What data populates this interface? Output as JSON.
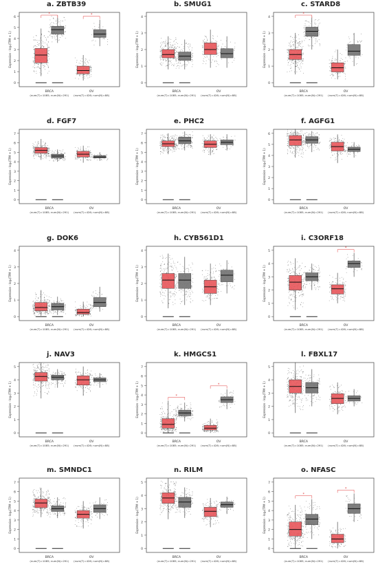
{
  "common": {
    "ylabel": "Expression - log₂(TPM + 1)",
    "groups": [
      {
        "name": "BRCA",
        "sub": "(num(T)=1085; num(N)=291)"
      },
      {
        "name": "OV",
        "sub": "(num(T)=426; num(N)=88)"
      }
    ],
    "colors": {
      "tumor": "#e8555a",
      "normal": "#707070",
      "sig": "#e03a3a",
      "frame": "#555555"
    }
  },
  "chart_data": [
    {
      "type": "box",
      "title": "a.  ZBTB39",
      "ylim": [
        0,
        6
      ],
      "yticks": [
        0,
        1,
        2,
        3,
        4,
        5,
        6
      ],
      "series": [
        {
          "name": "BRCA",
          "tumor": [
            0.6,
            1.8,
            2.5,
            3.1,
            4.9
          ],
          "normal": [
            3.6,
            4.4,
            4.8,
            5.1,
            6.1
          ],
          "sig": true
        },
        {
          "name": "OV",
          "tumor": [
            0.2,
            0.8,
            1.1,
            1.5,
            2.5
          ],
          "normal": [
            3.3,
            4.1,
            4.4,
            4.8,
            5.7
          ],
          "sig": true
        }
      ]
    },
    {
      "type": "box",
      "title": "b.  SMUG1",
      "ylim": [
        0,
        4
      ],
      "yticks": [
        0,
        1,
        2,
        3,
        4
      ],
      "series": [
        {
          "name": "BRCA",
          "tumor": [
            0.8,
            1.5,
            1.7,
            2.0,
            2.8
          ],
          "normal": [
            0.8,
            1.35,
            1.6,
            1.85,
            2.6
          ],
          "sig": false
        },
        {
          "name": "OV",
          "tumor": [
            0.9,
            1.7,
            2.0,
            2.4,
            3.2
          ],
          "normal": [
            0.9,
            1.5,
            1.75,
            2.05,
            2.8
          ],
          "sig": false
        }
      ]
    },
    {
      "type": "box",
      "title": "c.  STARD8",
      "ylim": [
        0,
        4
      ],
      "yticks": [
        0,
        1,
        2,
        3,
        4
      ],
      "series": [
        {
          "name": "BRCA",
          "tumor": [
            0.5,
            1.4,
            1.7,
            2.0,
            3.0
          ],
          "normal": [
            2.0,
            2.8,
            3.1,
            3.35,
            4.0
          ],
          "sig": true
        },
        {
          "name": "OV",
          "tumor": [
            0.2,
            0.65,
            0.9,
            1.2,
            2.0
          ],
          "normal": [
            1.0,
            1.65,
            1.9,
            2.3,
            3.0
          ],
          "sig": false
        }
      ]
    },
    {
      "type": "box",
      "title": "d.  FGF7",
      "ylim": [
        0,
        7
      ],
      "yticks": [
        0,
        1,
        2,
        3,
        4,
        5,
        6,
        7
      ],
      "series": [
        {
          "name": "BRCA",
          "tumor": [
            4.2,
            4.9,
            5.2,
            5.5,
            6.4
          ],
          "normal": [
            4.0,
            4.4,
            4.6,
            4.8,
            5.3
          ],
          "sig": false
        },
        {
          "name": "OV",
          "tumor": [
            3.9,
            4.5,
            4.8,
            5.1,
            5.7
          ],
          "normal": [
            4.1,
            4.4,
            4.5,
            4.65,
            5.0
          ],
          "sig": false
        }
      ]
    },
    {
      "type": "box",
      "title": "e.  PHC2",
      "ylim": [
        0,
        7
      ],
      "yticks": [
        0,
        1,
        2,
        3,
        4,
        5,
        6,
        7
      ],
      "series": [
        {
          "name": "BRCA",
          "tumor": [
            4.8,
            5.6,
            5.9,
            6.2,
            7.0
          ],
          "normal": [
            5.2,
            5.9,
            6.2,
            6.6,
            7.2
          ],
          "sig": false
        },
        {
          "name": "OV",
          "tumor": [
            4.7,
            5.5,
            5.85,
            6.2,
            6.9
          ],
          "normal": [
            5.2,
            5.8,
            6.05,
            6.3,
            6.9
          ],
          "sig": false
        }
      ]
    },
    {
      "type": "box",
      "title": "f.  AGFG1",
      "ylim": [
        0,
        6
      ],
      "yticks": [
        0,
        1,
        2,
        3,
        4,
        5,
        6
      ],
      "series": [
        {
          "name": "BRCA",
          "tumor": [
            3.8,
            4.9,
            5.4,
            5.8,
            6.4
          ],
          "normal": [
            4.3,
            5.1,
            5.4,
            5.7,
            6.2
          ],
          "sig": false
        },
        {
          "name": "OV",
          "tumor": [
            3.3,
            4.4,
            4.8,
            5.2,
            5.9
          ],
          "normal": [
            3.8,
            4.35,
            4.55,
            4.75,
            5.2
          ],
          "sig": false
        }
      ]
    },
    {
      "type": "box",
      "title": "g.  DOK6",
      "ylim": [
        0,
        4
      ],
      "yticks": [
        0,
        1,
        2,
        3,
        4
      ],
      "series": [
        {
          "name": "BRCA",
          "tumor": [
            0.05,
            0.35,
            0.55,
            0.85,
            1.6
          ],
          "normal": [
            0.1,
            0.4,
            0.6,
            0.8,
            1.2
          ],
          "sig": false
        },
        {
          "name": "OV",
          "tumor": [
            0.0,
            0.15,
            0.25,
            0.45,
            0.9
          ],
          "normal": [
            0.3,
            0.6,
            0.85,
            1.15,
            1.8
          ],
          "sig": false
        }
      ]
    },
    {
      "type": "box",
      "title": "h.  CYB561D1",
      "ylim": [
        0,
        4
      ],
      "yticks": [
        0,
        1,
        2,
        3,
        4
      ],
      "series": [
        {
          "name": "BRCA",
          "tumor": [
            0.5,
            1.7,
            2.2,
            2.6,
            3.8
          ],
          "normal": [
            0.7,
            1.7,
            2.2,
            2.6,
            3.6
          ],
          "sig": false
        },
        {
          "name": "OV",
          "tumor": [
            0.7,
            1.4,
            1.8,
            2.2,
            3.2
          ],
          "normal": [
            1.4,
            2.1,
            2.5,
            2.8,
            3.4
          ],
          "sig": false
        }
      ]
    },
    {
      "type": "box",
      "title": "i.  C3ORF18",
      "ylim": [
        0,
        5
      ],
      "yticks": [
        0,
        1,
        2,
        3,
        4,
        5
      ],
      "series": [
        {
          "name": "BRCA",
          "tumor": [
            0.5,
            2.0,
            2.6,
            3.1,
            4.4
          ],
          "normal": [
            2.0,
            2.7,
            3.0,
            3.3,
            4.0
          ],
          "sig": false
        },
        {
          "name": "OV",
          "tumor": [
            1.0,
            1.7,
            2.1,
            2.4,
            3.3
          ],
          "normal": [
            3.0,
            3.7,
            4.0,
            4.2,
            4.8
          ],
          "sig": true
        }
      ]
    },
    {
      "type": "box",
      "title": "j.  NAV3",
      "ylim": [
        0,
        5
      ],
      "yticks": [
        0,
        1,
        2,
        3,
        4,
        5
      ],
      "series": [
        {
          "name": "BRCA",
          "tumor": [
            2.6,
            3.9,
            4.25,
            4.55,
            5.3
          ],
          "normal": [
            3.4,
            4.0,
            4.2,
            4.35,
            4.8
          ],
          "sig": false
        },
        {
          "name": "OV",
          "tumor": [
            2.8,
            3.6,
            4.0,
            4.3,
            5.0
          ],
          "normal": [
            3.4,
            3.85,
            4.0,
            4.15,
            4.5
          ],
          "sig": false
        }
      ]
    },
    {
      "type": "box",
      "title": "k.  HMGCS1",
      "ylim": [
        0,
        7
      ],
      "yticks": [
        0,
        1,
        2,
        3,
        4,
        5,
        6,
        7
      ],
      "series": [
        {
          "name": "BRCA",
          "tumor": [
            0.0,
            0.5,
            0.9,
            1.5,
            3.4
          ],
          "normal": [
            1.2,
            1.8,
            2.1,
            2.4,
            3.2
          ],
          "sig": true
        },
        {
          "name": "OV",
          "tumor": [
            0.0,
            0.3,
            0.5,
            0.8,
            1.5
          ],
          "normal": [
            2.5,
            3.2,
            3.5,
            3.8,
            4.6
          ],
          "sig": true
        }
      ]
    },
    {
      "type": "box",
      "title": "l.  FBXL17",
      "ylim": [
        0,
        5
      ],
      "yticks": [
        0,
        1,
        2,
        3,
        4,
        5
      ],
      "series": [
        {
          "name": "BRCA",
          "tumor": [
            1.5,
            3.0,
            3.5,
            4.0,
            5.3
          ],
          "normal": [
            2.0,
            3.0,
            3.4,
            3.8,
            4.8
          ],
          "sig": false
        },
        {
          "name": "OV",
          "tumor": [
            1.4,
            2.2,
            2.6,
            2.95,
            3.8
          ],
          "normal": [
            2.0,
            2.4,
            2.6,
            2.8,
            3.3
          ],
          "sig": false
        }
      ]
    },
    {
      "type": "box",
      "title": "m.  SMNDC1",
      "ylim": [
        0,
        7
      ],
      "yticks": [
        0,
        1,
        2,
        3,
        4,
        5,
        6,
        7
      ],
      "series": [
        {
          "name": "BRCA",
          "tumor": [
            3.3,
            4.3,
            4.8,
            5.2,
            6.4
          ],
          "normal": [
            3.2,
            3.9,
            4.2,
            4.5,
            5.4
          ],
          "sig": false
        },
        {
          "name": "OV",
          "tumor": [
            2.1,
            3.2,
            3.6,
            4.0,
            5.0
          ],
          "normal": [
            3.1,
            3.8,
            4.2,
            4.6,
            5.4
          ],
          "sig": false
        }
      ]
    },
    {
      "type": "box",
      "title": "n.  RILM",
      "ylim": [
        0,
        5
      ],
      "yticks": [
        0,
        1,
        2,
        3,
        4,
        5
      ],
      "series": [
        {
          "name": "BRCA",
          "tumor": [
            2.2,
            3.4,
            3.8,
            4.2,
            5.3
          ],
          "normal": [
            2.3,
            3.1,
            3.5,
            3.85,
            4.6
          ],
          "sig": false
        },
        {
          "name": "OV",
          "tumor": [
            1.6,
            2.4,
            2.8,
            3.1,
            3.8
          ],
          "normal": [
            2.6,
            3.1,
            3.3,
            3.5,
            3.9
          ],
          "sig": false
        }
      ]
    },
    {
      "type": "box",
      "title": "o.  NFASC",
      "ylim": [
        0,
        7
      ],
      "yticks": [
        0,
        1,
        2,
        3,
        4,
        5,
        6,
        7
      ],
      "series": [
        {
          "name": "BRCA",
          "tumor": [
            0.0,
            1.3,
            2.0,
            2.8,
            4.6
          ],
          "normal": [
            1.0,
            2.5,
            3.1,
            3.6,
            5.2
          ],
          "sig": true
        },
        {
          "name": "OV",
          "tumor": [
            0.0,
            0.6,
            1.0,
            1.5,
            2.8
          ],
          "normal": [
            2.8,
            3.7,
            4.2,
            4.7,
            5.8
          ],
          "sig": true
        }
      ]
    }
  ]
}
